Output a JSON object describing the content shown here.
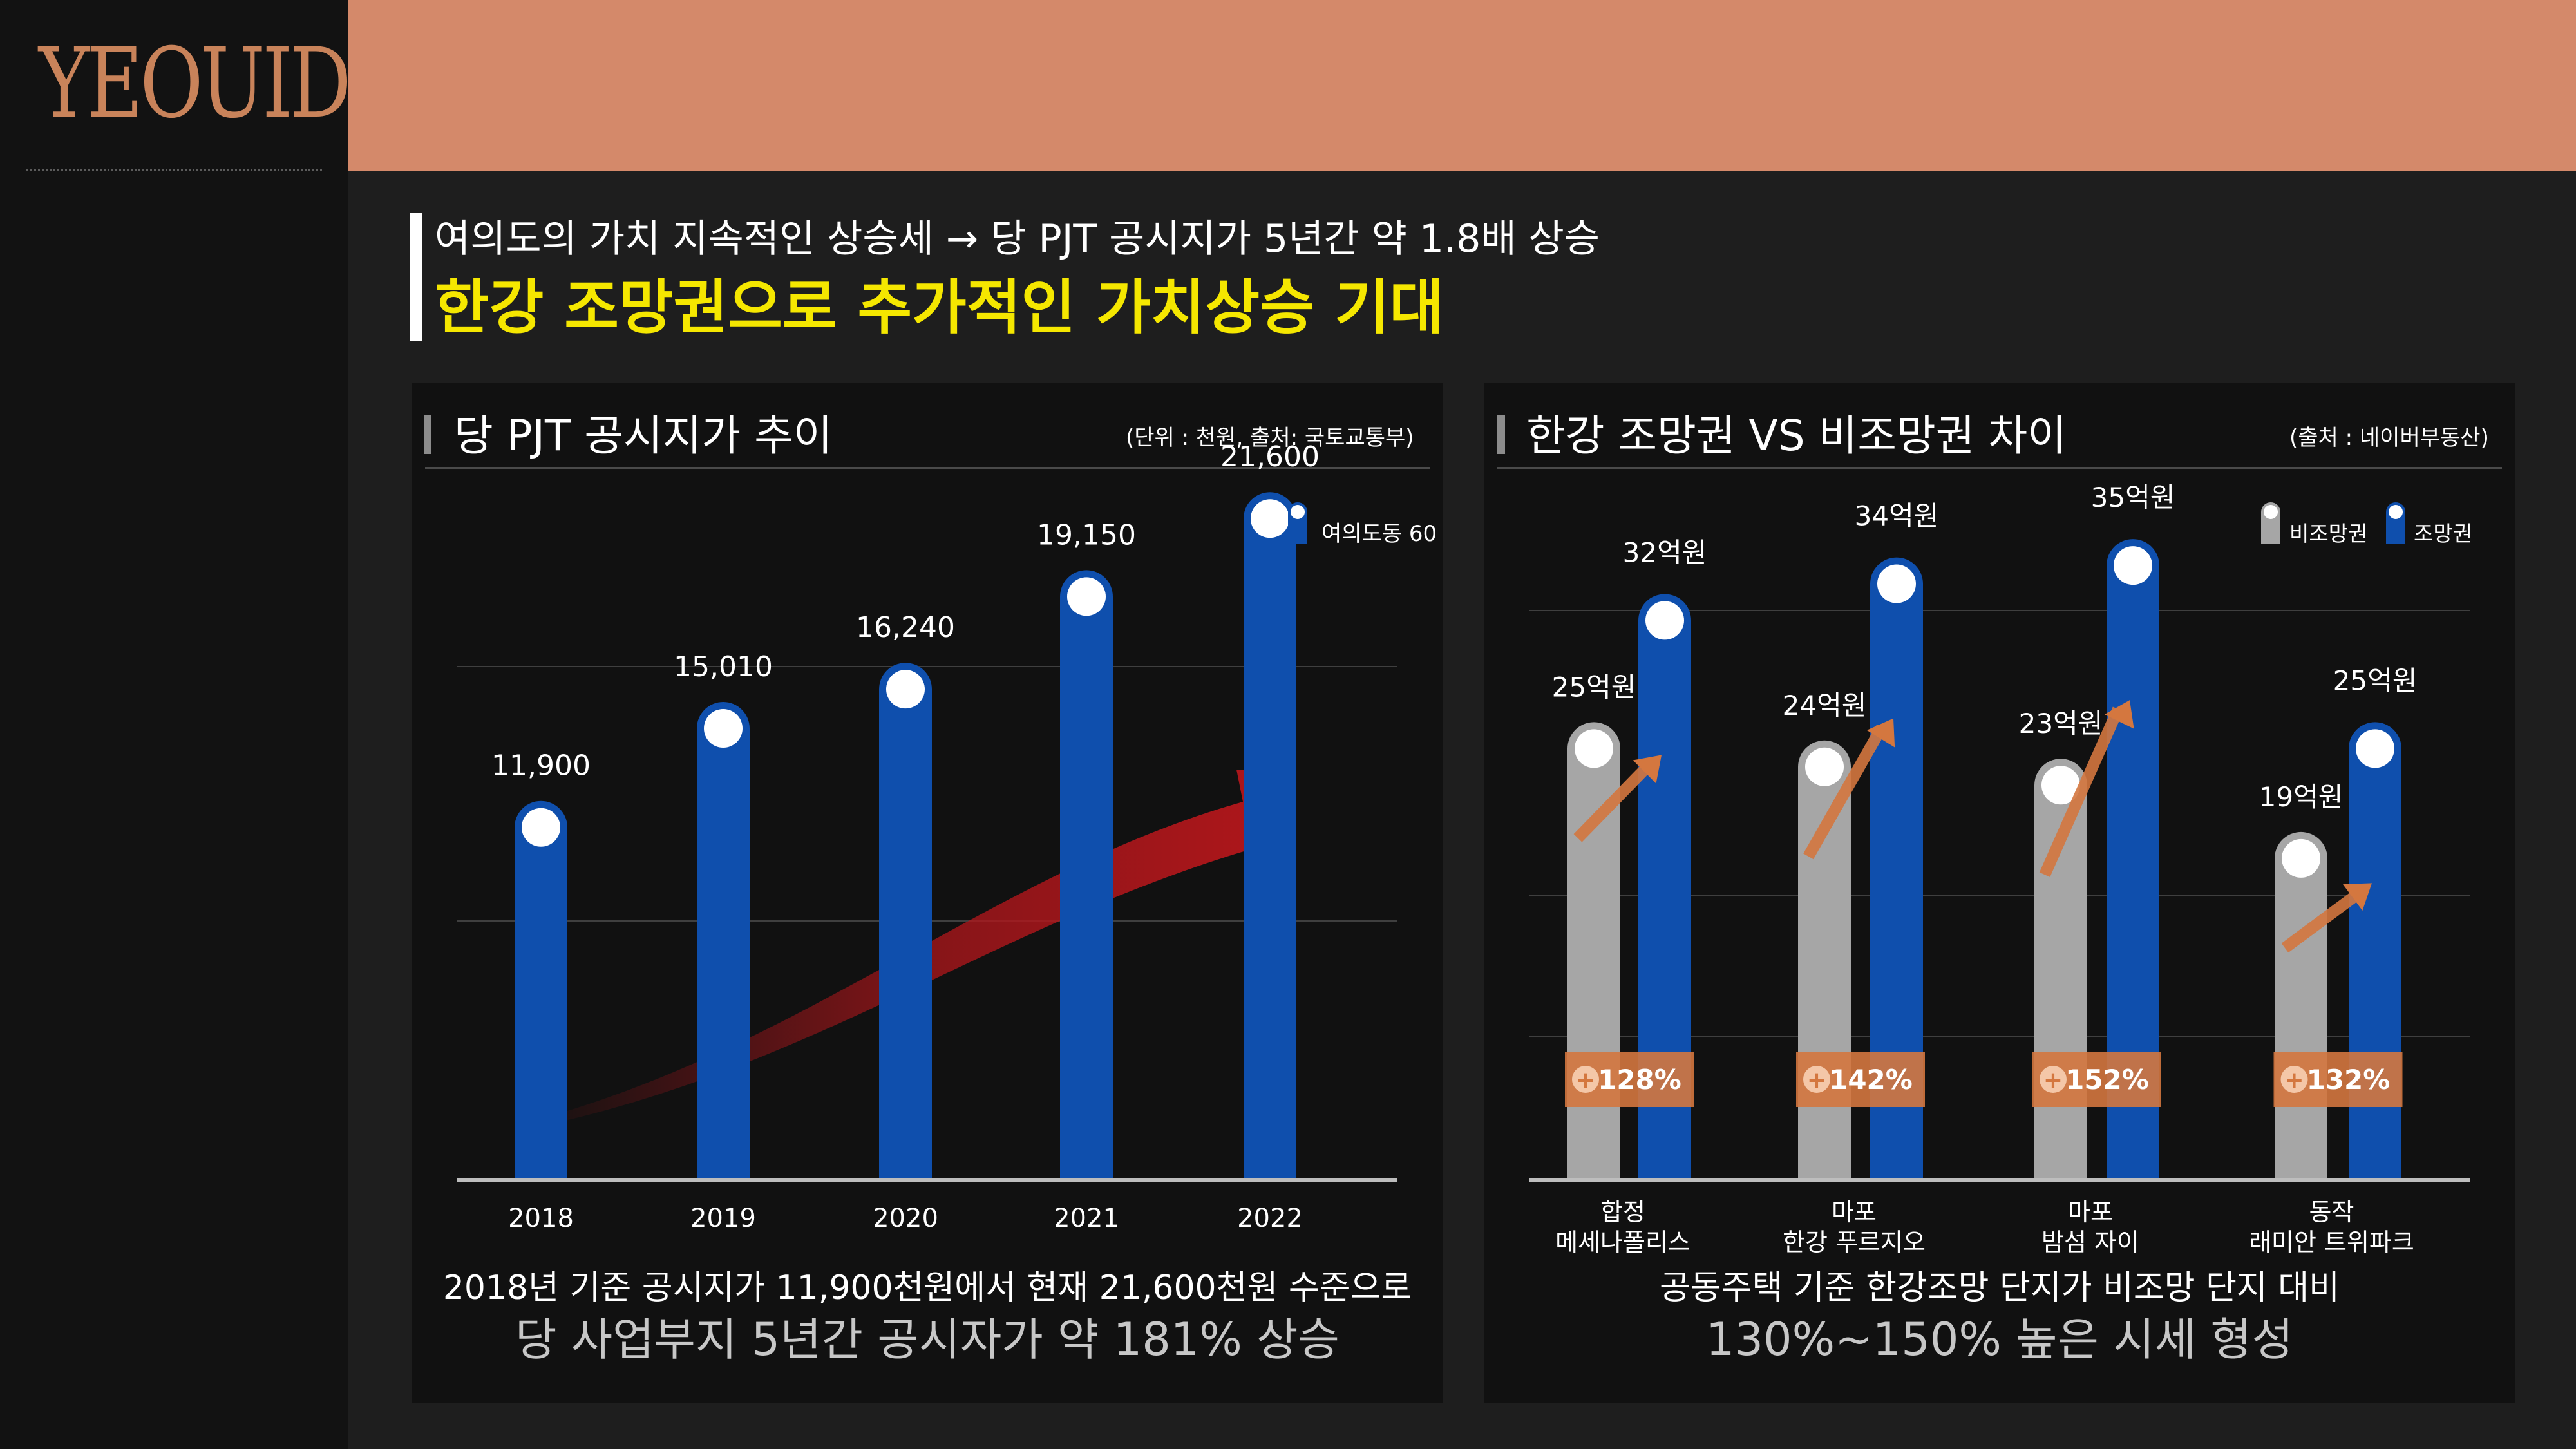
{
  "brand": {
    "logo_text": "YEOUIDO"
  },
  "header": {
    "subtitle": "여의도의 가치 지속적인 상승세 → 당 PJT 공시지가 5년간 약 1.8배 상승",
    "title": "한강 조망권으로 추가적인 가치상승 기대"
  },
  "left_panel": {
    "title": "당 PJT 공시지가 추이",
    "note": "(단위 : 천원, 출처: 국토교통부)",
    "summary_line1": "2018년 기준 공시지가 11,900천원에서 현재 21,600천원 수준으로",
    "summary_line2": "당 사업부지 5년간 공시자가 약 181% 상승"
  },
  "right_panel": {
    "title": "한강 조망권 VS 비조망권 차이",
    "note": "(출처 : 네이버부동산)",
    "summary_line1": "공동주택 기준 한강조망 단지가 비조망 단지 대비",
    "summary_line2": "130%~150% 높은 시세 형성"
  },
  "colors": {
    "bar_blue": "#0f4fad",
    "bar_gray": "#a6a6a6",
    "badge_orange": "#d4773f",
    "trend_red": "#b0161b",
    "title_yellow": "#f5e700",
    "topbar": "#d4896a"
  },
  "chart_data": [
    {
      "type": "bar",
      "categories": [
        "2018",
        "2019",
        "2020",
        "2021",
        "2022"
      ],
      "series": [
        {
          "name": "여의도동 60",
          "values": [
            11900,
            15010,
            16240,
            19150,
            21600
          ]
        }
      ],
      "value_labels": [
        "11,900",
        "15,010",
        "16,240",
        "19,150",
        "21,600"
      ],
      "ylim": [
        0,
        23000
      ],
      "grid": true,
      "legend": "top-right",
      "annotation": "rising trend arrow"
    },
    {
      "type": "bar",
      "categories": [
        [
          "합정",
          "메세나폴리스"
        ],
        [
          "마포",
          "한강 푸르지오"
        ],
        [
          "마포",
          "밤섬 자이"
        ],
        [
          "동작",
          "래미안 트위파크"
        ]
      ],
      "series": [
        {
          "name": "비조망권",
          "values": [
            25,
            24,
            23,
            19
          ],
          "labels": [
            "25억원",
            "24억원",
            "23억원",
            "19억원"
          ]
        },
        {
          "name": "조망권",
          "values": [
            32,
            34,
            35,
            25
          ],
          "labels": [
            "32억원",
            "34억원",
            "35억원",
            "25억원"
          ]
        }
      ],
      "badges": [
        "128%",
        "142%",
        "152%",
        "132%"
      ],
      "ylim": [
        0,
        40
      ],
      "grid": true,
      "legend": "top-right"
    }
  ]
}
